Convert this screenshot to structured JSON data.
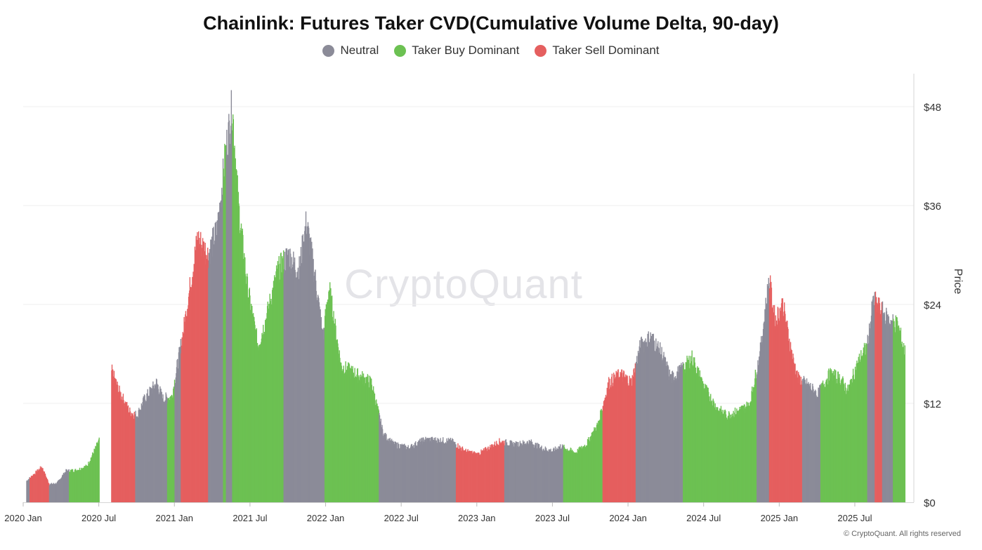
{
  "chart_data": {
    "type": "bar",
    "title": "Chainlink: Futures Taker CVD(Cumulative Volume Delta, 90-day)",
    "ylabel": "Price",
    "ylim": [
      0,
      52
    ],
    "yticks": [
      "$0",
      "$12",
      "$24",
      "$36",
      "$48"
    ],
    "ytick_values": [
      0,
      12,
      24,
      36,
      48
    ],
    "xticks": [
      "2020 Jan",
      "2020 Jul",
      "2021 Jan",
      "2021 Jul",
      "2022 Jan",
      "2022 Jul",
      "2023 Jan",
      "2023 Jul",
      "2024 Jan",
      "2024 Jul",
      "2025 Jan",
      "2025 Jul"
    ],
    "xtick_values": [
      2020.0,
      2020.5,
      2021.0,
      2021.5,
      2022.0,
      2022.5,
      2023.0,
      2023.5,
      2024.0,
      2024.5,
      2025.0,
      2025.5
    ],
    "xlim": [
      2020.0,
      2025.83
    ],
    "legend": [
      {
        "name": "Neutral",
        "color": "#8b8b98",
        "key": "neutral"
      },
      {
        "name": "Taker Buy Dominant",
        "color": "#6cc152",
        "key": "buy"
      },
      {
        "name": "Taker Sell Dominant",
        "color": "#e55f5f",
        "key": "sell"
      }
    ],
    "colors": {
      "neutral": "#8b8b98",
      "buy": "#6cc152",
      "sell": "#e55f5f"
    },
    "price_points": [
      [
        2020.02,
        2.6
      ],
      [
        2020.08,
        3.6
      ],
      [
        2020.12,
        4.3
      ],
      [
        2020.17,
        2.2
      ],
      [
        2020.22,
        2.3
      ],
      [
        2020.28,
        3.8
      ],
      [
        2020.35,
        3.9
      ],
      [
        2020.42,
        4.4
      ],
      [
        2020.5,
        7.5
      ],
      [
        2020.58,
        16.0
      ],
      [
        2020.63,
        13.5
      ],
      [
        2020.7,
        11.0
      ],
      [
        2020.75,
        10.5
      ],
      [
        2020.8,
        12.5
      ],
      [
        2020.88,
        14.5
      ],
      [
        2020.92,
        12.5
      ],
      [
        2020.98,
        12.8
      ],
      [
        2021.05,
        20.0
      ],
      [
        2021.1,
        26.0
      ],
      [
        2021.15,
        32.0
      ],
      [
        2021.22,
        30.0
      ],
      [
        2021.28,
        33.0
      ],
      [
        2021.34,
        43.0
      ],
      [
        2021.38,
        48.0
      ],
      [
        2021.42,
        36.0
      ],
      [
        2021.48,
        26.0
      ],
      [
        2021.55,
        19.0
      ],
      [
        2021.6,
        22.0
      ],
      [
        2021.68,
        28.0
      ],
      [
        2021.75,
        30.0
      ],
      [
        2021.82,
        28.0
      ],
      [
        2021.87,
        34.0
      ],
      [
        2021.93,
        27.0
      ],
      [
        2021.98,
        20.0
      ],
      [
        2022.02,
        26.0
      ],
      [
        2022.1,
        16.5
      ],
      [
        2022.2,
        15.5
      ],
      [
        2022.3,
        14.5
      ],
      [
        2022.38,
        8.2
      ],
      [
        2022.45,
        7.0
      ],
      [
        2022.55,
        6.6
      ],
      [
        2022.65,
        7.6
      ],
      [
        2022.75,
        7.5
      ],
      [
        2022.83,
        7.4
      ],
      [
        2022.92,
        6.2
      ],
      [
        2023.0,
        5.8
      ],
      [
        2023.08,
        6.6
      ],
      [
        2023.15,
        7.4
      ],
      [
        2023.25,
        7.0
      ],
      [
        2023.35,
        7.3
      ],
      [
        2023.42,
        6.6
      ],
      [
        2023.5,
        6.2
      ],
      [
        2023.55,
        6.8
      ],
      [
        2023.65,
        6.0
      ],
      [
        2023.72,
        7.0
      ],
      [
        2023.8,
        9.5
      ],
      [
        2023.87,
        14.5
      ],
      [
        2023.95,
        15.5
      ],
      [
        2024.02,
        14.5
      ],
      [
        2024.08,
        19.0
      ],
      [
        2024.15,
        20.0
      ],
      [
        2024.22,
        18.0
      ],
      [
        2024.28,
        15.0
      ],
      [
        2024.35,
        16.0
      ],
      [
        2024.42,
        17.5
      ],
      [
        2024.5,
        14.0
      ],
      [
        2024.58,
        11.5
      ],
      [
        2024.65,
        10.5
      ],
      [
        2024.72,
        11.0
      ],
      [
        2024.8,
        11.8
      ],
      [
        2024.87,
        18.0
      ],
      [
        2024.93,
        27.0
      ],
      [
        2024.97,
        22.0
      ],
      [
        2025.02,
        24.0
      ],
      [
        2025.08,
        18.0
      ],
      [
        2025.12,
        15.0
      ],
      [
        2025.2,
        14.0
      ],
      [
        2025.25,
        13.0
      ],
      [
        2025.33,
        15.5
      ],
      [
        2025.4,
        15.0
      ],
      [
        2025.45,
        13.5
      ],
      [
        2025.52,
        17.0
      ],
      [
        2025.58,
        19.0
      ],
      [
        2025.62,
        24.5
      ],
      [
        2025.68,
        23.0
      ],
      [
        2025.72,
        22.0
      ],
      [
        2025.78,
        21.5
      ],
      [
        2025.83,
        18.0
      ]
    ],
    "regimes": [
      {
        "start": 2020.02,
        "end": 2020.04,
        "state": "neutral"
      },
      {
        "start": 2020.04,
        "end": 2020.17,
        "state": "sell"
      },
      {
        "start": 2020.17,
        "end": 2020.3,
        "state": "neutral"
      },
      {
        "start": 2020.3,
        "end": 2020.38,
        "state": "buy"
      },
      {
        "start": 2020.38,
        "end": 2020.5,
        "state": "buy"
      },
      {
        "start": 2020.58,
        "end": 2020.74,
        "state": "sell"
      },
      {
        "start": 2020.74,
        "end": 2020.95,
        "state": "neutral"
      },
      {
        "start": 2020.95,
        "end": 2021.0,
        "state": "buy"
      },
      {
        "start": 2021.0,
        "end": 2021.04,
        "state": "neutral"
      },
      {
        "start": 2021.04,
        "end": 2021.22,
        "state": "sell"
      },
      {
        "start": 2021.22,
        "end": 2021.32,
        "state": "neutral"
      },
      {
        "start": 2021.32,
        "end": 2021.34,
        "state": "buy"
      },
      {
        "start": 2021.34,
        "end": 2021.38,
        "state": "neutral"
      },
      {
        "start": 2021.38,
        "end": 2021.55,
        "state": "buy"
      },
      {
        "start": 2021.55,
        "end": 2021.72,
        "state": "buy"
      },
      {
        "start": 2021.72,
        "end": 2021.99,
        "state": "neutral"
      },
      {
        "start": 2021.99,
        "end": 2022.35,
        "state": "buy"
      },
      {
        "start": 2022.35,
        "end": 2022.7,
        "state": "neutral"
      },
      {
        "start": 2022.7,
        "end": 2022.86,
        "state": "neutral"
      },
      {
        "start": 2022.86,
        "end": 2023.18,
        "state": "sell"
      },
      {
        "start": 2023.18,
        "end": 2023.57,
        "state": "neutral"
      },
      {
        "start": 2023.57,
        "end": 2023.83,
        "state": "buy"
      },
      {
        "start": 2023.83,
        "end": 2024.05,
        "state": "sell"
      },
      {
        "start": 2024.05,
        "end": 2024.36,
        "state": "neutral"
      },
      {
        "start": 2024.36,
        "end": 2024.85,
        "state": "buy"
      },
      {
        "start": 2024.85,
        "end": 2024.93,
        "state": "neutral"
      },
      {
        "start": 2024.93,
        "end": 2025.15,
        "state": "sell"
      },
      {
        "start": 2025.15,
        "end": 2025.27,
        "state": "neutral"
      },
      {
        "start": 2025.27,
        "end": 2025.58,
        "state": "buy"
      },
      {
        "start": 2025.58,
        "end": 2025.63,
        "state": "neutral"
      },
      {
        "start": 2025.63,
        "end": 2025.68,
        "state": "sell"
      },
      {
        "start": 2025.68,
        "end": 2025.75,
        "state": "neutral"
      },
      {
        "start": 2025.75,
        "end": 2025.83,
        "state": "buy"
      }
    ]
  },
  "watermark": "CryptoQuant",
  "copyright": "© CryptoQuant. All rights reserved"
}
